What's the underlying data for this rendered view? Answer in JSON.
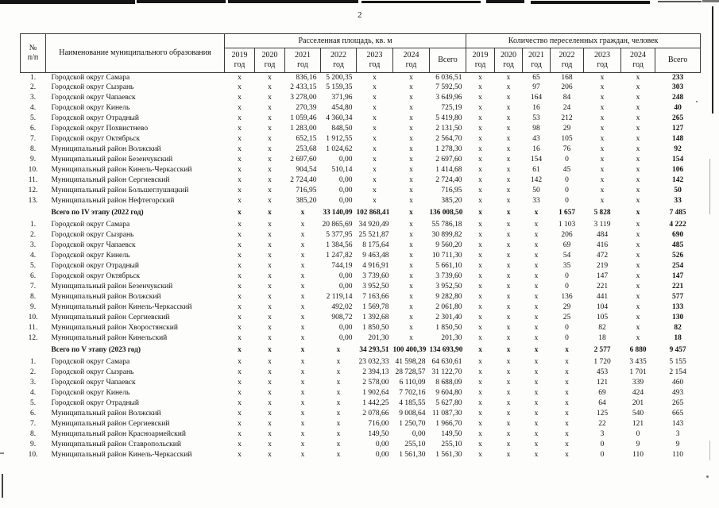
{
  "page_number": "2",
  "colors": {
    "ink": "#131313",
    "paper": "#fdfdfb"
  },
  "table": {
    "header": {
      "num_line1": "№",
      "num_line2": "п/п",
      "name": "Наименование муниципального образования",
      "group_area": "Расселенная площадь, кв. м",
      "group_citizens": "Количество переселенных граждан, человек",
      "years": [
        "2019",
        "2020",
        "2021",
        "2022",
        "2023",
        "2024"
      ],
      "year_suffix": "год",
      "total": "Всего"
    },
    "sections": [
      {
        "rows": [
          {
            "n": "1.",
            "name": "Городской округ Самара",
            "area": [
              "x",
              "x",
              "836,16",
              "5 200,35",
              "x",
              "x",
              "6 036,51"
            ],
            "people": [
              "x",
              "x",
              "65",
              "168",
              "x",
              "x",
              "233"
            ]
          },
          {
            "n": "2.",
            "name": "Городской округ Сызрань",
            "area": [
              "x",
              "x",
              "2 433,15",
              "5 159,35",
              "x",
              "x",
              "7 592,50"
            ],
            "people": [
              "x",
              "x",
              "97",
              "206",
              "x",
              "x",
              "303"
            ]
          },
          {
            "n": "3.",
            "name": "Городской округ Чапаевск",
            "area": [
              "x",
              "x",
              "3 278,00",
              "371,96",
              "x",
              "x",
              "3 649,96"
            ],
            "people": [
              "x",
              "x",
              "164",
              "84",
              "x",
              "x",
              "248"
            ]
          },
          {
            "n": "4.",
            "name": "Городской округ Кинель",
            "area": [
              "x",
              "x",
              "270,39",
              "454,80",
              "x",
              "x",
              "725,19"
            ],
            "people": [
              "x",
              "x",
              "16",
              "24",
              "x",
              "x",
              "40"
            ]
          },
          {
            "n": "5.",
            "name": "Городской округ Отрадный",
            "area": [
              "x",
              "x",
              "1 059,46",
              "4 360,34",
              "x",
              "x",
              "5 419,80"
            ],
            "people": [
              "x",
              "x",
              "53",
              "212",
              "x",
              "x",
              "265"
            ]
          },
          {
            "n": "6.",
            "name": "Городской округ Похвистнево",
            "area": [
              "x",
              "x",
              "1 283,00",
              "848,50",
              "x",
              "x",
              "2 131,50"
            ],
            "people": [
              "x",
              "x",
              "98",
              "29",
              "x",
              "x",
              "127"
            ]
          },
          {
            "n": "7.",
            "name": "Городской округ Октябрьск",
            "area": [
              "x",
              "x",
              "652,15",
              "1 912,55",
              "x",
              "x",
              "2 564,70"
            ],
            "people": [
              "x",
              "x",
              "43",
              "105",
              "x",
              "x",
              "148"
            ]
          },
          {
            "n": "8.",
            "name": "Муниципальный район Волжский",
            "area": [
              "x",
              "x",
              "253,68",
              "1 024,62",
              "x",
              "x",
              "1 278,30"
            ],
            "people": [
              "x",
              "x",
              "16",
              "76",
              "x",
              "x",
              "92"
            ]
          },
          {
            "n": "9.",
            "name": "Муниципальный район Безенчукский",
            "area": [
              "x",
              "x",
              "2 697,60",
              "0,00",
              "x",
              "x",
              "2 697,60"
            ],
            "people": [
              "x",
              "x",
              "154",
              "0",
              "x",
              "x",
              "154"
            ]
          },
          {
            "n": "10.",
            "name": "Муниципальный район Кинель-Черкасский",
            "area": [
              "x",
              "x",
              "904,54",
              "510,14",
              "x",
              "x",
              "1 414,68"
            ],
            "people": [
              "x",
              "x",
              "61",
              "45",
              "x",
              "x",
              "106"
            ]
          },
          {
            "n": "11.",
            "name": "Муниципальный район Сергиевский",
            "area": [
              "x",
              "x",
              "2 724,40",
              "0,00",
              "x",
              "x",
              "2 724,40"
            ],
            "people": [
              "x",
              "x",
              "142",
              "0",
              "x",
              "x",
              "142"
            ]
          },
          {
            "n": "12.",
            "name": "Муниципальный район Большеглушицкий",
            "area": [
              "x",
              "x",
              "716,95",
              "0,00",
              "x",
              "x",
              "716,95"
            ],
            "people": [
              "x",
              "x",
              "50",
              "0",
              "x",
              "x",
              "50"
            ]
          },
          {
            "n": "13.",
            "name": "Муниципальный район Нефтегорский",
            "area": [
              "x",
              "x",
              "385,20",
              "0,00",
              "x",
              "x",
              "385,20"
            ],
            "people": [
              "x",
              "x",
              "33",
              "0",
              "x",
              "x",
              "33"
            ]
          }
        ],
        "total": {
          "label": "Всего по IV этапу (2022 год)",
          "area": [
            "x",
            "x",
            "x",
            "33 140,09",
            "102 868,41",
            "x",
            "136 008,50"
          ],
          "people": [
            "x",
            "x",
            "x",
            "1 657",
            "5 828",
            "x",
            "7 485"
          ]
        }
      },
      {
        "rows": [
          {
            "n": "1.",
            "name": "Городской округ Самара",
            "area": [
              "x",
              "x",
              "x",
              "20 865,69",
              "34 920,49",
              "x",
              "55 786,18"
            ],
            "people": [
              "x",
              "x",
              "x",
              "1 103",
              "3 119",
              "x",
              "4 222"
            ]
          },
          {
            "n": "2.",
            "name": "Городской округ Сызрань",
            "area": [
              "x",
              "x",
              "x",
              "5 377,95",
              "25 521,87",
              "x",
              "30 899,82"
            ],
            "people": [
              "x",
              "x",
              "x",
              "206",
              "484",
              "x",
              "690"
            ]
          },
          {
            "n": "3.",
            "name": "Городской округ Чапаевск",
            "area": [
              "x",
              "x",
              "x",
              "1 384,56",
              "8 175,64",
              "x",
              "9 560,20"
            ],
            "people": [
              "x",
              "x",
              "x",
              "69",
              "416",
              "x",
              "485"
            ]
          },
          {
            "n": "4.",
            "name": "Городской округ Кинель",
            "area": [
              "x",
              "x",
              "x",
              "1 247,82",
              "9 463,48",
              "x",
              "10 711,30"
            ],
            "people": [
              "x",
              "x",
              "x",
              "54",
              "472",
              "x",
              "526"
            ]
          },
          {
            "n": "5.",
            "name": "Городской округ Отрадный",
            "area": [
              "x",
              "x",
              "x",
              "744,19",
              "4 916,91",
              "x",
              "5 661,10"
            ],
            "people": [
              "x",
              "x",
              "x",
              "35",
              "219",
              "x",
              "254"
            ]
          },
          {
            "n": "6.",
            "name": "Городской округ Октябрьск",
            "area": [
              "x",
              "x",
              "x",
              "0,00",
              "3 739,60",
              "x",
              "3 739,60"
            ],
            "people": [
              "x",
              "x",
              "x",
              "0",
              "147",
              "x",
              "147"
            ]
          },
          {
            "n": "7.",
            "name": "Муниципальный район Безенчукский",
            "area": [
              "x",
              "x",
              "x",
              "0,00",
              "3 952,50",
              "x",
              "3 952,50"
            ],
            "people": [
              "x",
              "x",
              "x",
              "0",
              "221",
              "x",
              "221"
            ]
          },
          {
            "n": "8.",
            "name": "Муниципальный район Волжский",
            "area": [
              "x",
              "x",
              "x",
              "2 119,14",
              "7 163,66",
              "x",
              "9 282,80"
            ],
            "people": [
              "x",
              "x",
              "x",
              "136",
              "441",
              "x",
              "577"
            ]
          },
          {
            "n": "9.",
            "name": "Муниципальный район Кинель-Черкасский",
            "area": [
              "x",
              "x",
              "x",
              "492,02",
              "1 569,78",
              "x",
              "2 061,80"
            ],
            "people": [
              "x",
              "x",
              "x",
              "29",
              "104",
              "x",
              "133"
            ]
          },
          {
            "n": "10.",
            "name": "Муниципальный район Сергиевский",
            "area": [
              "x",
              "x",
              "x",
              "908,72",
              "1 392,68",
              "x",
              "2 301,40"
            ],
            "people": [
              "x",
              "x",
              "x",
              "25",
              "105",
              "x",
              "130"
            ]
          },
          {
            "n": "11.",
            "name": "Муниципальный район Хворостянский",
            "area": [
              "x",
              "x",
              "x",
              "0,00",
              "1 850,50",
              "x",
              "1 850,50"
            ],
            "people": [
              "x",
              "x",
              "x",
              "0",
              "82",
              "x",
              "82"
            ]
          },
          {
            "n": "12.",
            "name": "Муниципальный район Кинельский",
            "area": [
              "x",
              "x",
              "x",
              "0,00",
              "201,30",
              "x",
              "201,30"
            ],
            "people": [
              "x",
              "x",
              "x",
              "0",
              "18",
              "x",
              "18"
            ]
          }
        ],
        "total": {
          "label": "Всего по V этапу (2023 год)",
          "area": [
            "x",
            "x",
            "x",
            "x",
            "34 293,51",
            "100 400,39",
            "134 693,90"
          ],
          "people": [
            "x",
            "x",
            "x",
            "x",
            "2 577",
            "6 880",
            "9 457"
          ]
        }
      },
      {
        "rows": [
          {
            "n": "1.",
            "name": "Городской округ Самара",
            "area": [
              "x",
              "x",
              "x",
              "x",
              "23 032,33",
              "41 598,28",
              "64 630,61"
            ],
            "people": [
              "x",
              "x",
              "x",
              "x",
              "1 720",
              "3 435",
              "5 155"
            ]
          },
          {
            "n": "2.",
            "name": "Городской округ Сызрань",
            "area": [
              "x",
              "x",
              "x",
              "x",
              "2 394,13",
              "28 728,57",
              "31 122,70"
            ],
            "people": [
              "x",
              "x",
              "x",
              "x",
              "453",
              "1 701",
              "2 154"
            ]
          },
          {
            "n": "3.",
            "name": "Городской округ Чапаевск",
            "area": [
              "x",
              "x",
              "x",
              "x",
              "2 578,00",
              "6 110,09",
              "8 688,09"
            ],
            "people": [
              "x",
              "x",
              "x",
              "x",
              "121",
              "339",
              "460"
            ]
          },
          {
            "n": "4.",
            "name": "Городской округ Кинель",
            "area": [
              "x",
              "x",
              "x",
              "x",
              "1 902,64",
              "7 702,16",
              "9 604,80"
            ],
            "people": [
              "x",
              "x",
              "x",
              "x",
              "69",
              "424",
              "493"
            ]
          },
          {
            "n": "5.",
            "name": "Городской округ Отрадный",
            "area": [
              "x",
              "x",
              "x",
              "x",
              "1 442,25",
              "4 185,55",
              "5 627,80"
            ],
            "people": [
              "x",
              "x",
              "x",
              "x",
              "64",
              "201",
              "265"
            ]
          },
          {
            "n": "6.",
            "name": "Муниципальный район Волжский",
            "area": [
              "x",
              "x",
              "x",
              "x",
              "2 078,66",
              "9 008,64",
              "11 087,30"
            ],
            "people": [
              "x",
              "x",
              "x",
              "x",
              "125",
              "540",
              "665"
            ]
          },
          {
            "n": "7.",
            "name": "Муниципальный район Сергиевский",
            "area": [
              "x",
              "x",
              "x",
              "x",
              "716,00",
              "1 250,70",
              "1 966,70"
            ],
            "people": [
              "x",
              "x",
              "x",
              "x",
              "22",
              "121",
              "143"
            ]
          },
          {
            "n": "8.",
            "name": "Муниципальный район Красноармейский",
            "area": [
              "x",
              "x",
              "x",
              "x",
              "149,50",
              "0,00",
              "149,50"
            ],
            "people": [
              "x",
              "x",
              "x",
              "x",
              "3",
              "0",
              "3"
            ]
          },
          {
            "n": "9.",
            "name": "Муниципальный район  Ставропольский",
            "area": [
              "x",
              "x",
              "x",
              "x",
              "0,00",
              "255,10",
              "255,10"
            ],
            "people": [
              "x",
              "x",
              "x",
              "x",
              "0",
              "9",
              "9"
            ]
          },
          {
            "n": "10.",
            "name": "Муниципальный район Кинель-Черкасский",
            "area": [
              "x",
              "x",
              "x",
              "x",
              "0,00",
              "1 561,30",
              "1 561,30"
            ],
            "people": [
              "x",
              "x",
              "x",
              "x",
              "0",
              "110",
              "110"
            ]
          }
        ],
        "total": null
      }
    ]
  }
}
